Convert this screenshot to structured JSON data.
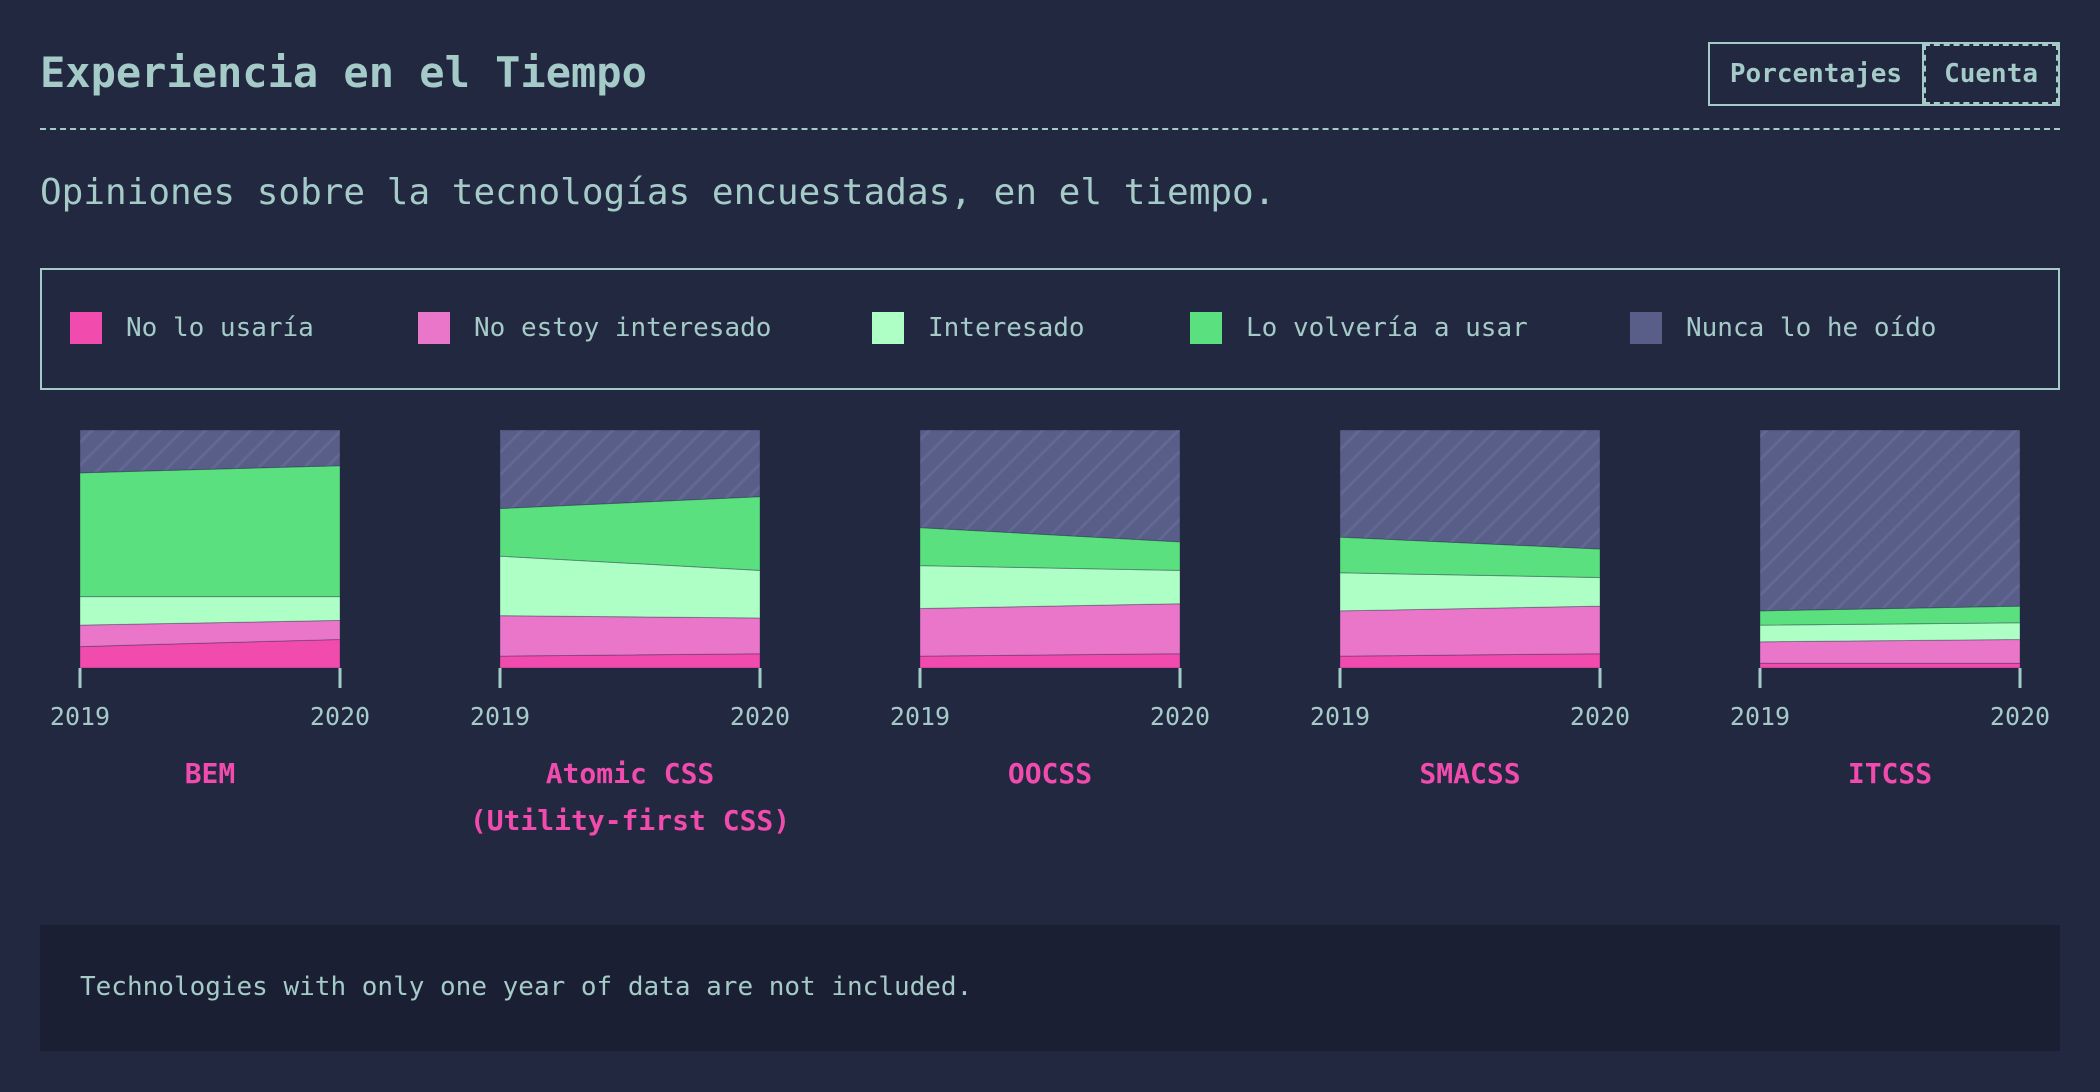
{
  "header": {
    "title": "Experiencia en el Tiempo",
    "toggle": {
      "percentages_label": "Porcentajes",
      "count_label": "Cuenta"
    }
  },
  "subtitle": "Opiniones sobre la tecnologías encuestadas, en el tiempo.",
  "colors": {
    "background": "#232841",
    "text": "#a4cbc7",
    "accent": "#f14bad",
    "note_background": "#1b1f33"
  },
  "legend": [
    {
      "label": "No lo usaría",
      "color": "#f14bad"
    },
    {
      "label": "No estoy interesado",
      "color": "#ea76c9"
    },
    {
      "label": "Interesado",
      "color": "#adffc5"
    },
    {
      "label": "Lo volvería a usar",
      "color": "#5ae07f"
    },
    {
      "label": "Nunca lo he oído",
      "color": "#585e87"
    }
  ],
  "chart_data": {
    "type": "area",
    "stacked": true,
    "percent": true,
    "x": [
      "2019",
      "2020"
    ],
    "ylim": [
      0,
      100
    ],
    "series_order": [
      "No lo usaría",
      "No estoy interesado",
      "Interesado",
      "Lo volvería a usar",
      "Nunca lo he oído"
    ],
    "charts": [
      {
        "name": "BEM",
        "series": [
          {
            "name": "No lo usaría",
            "values": [
              9,
              12
            ]
          },
          {
            "name": "No estoy interesado",
            "values": [
              9,
              8
            ]
          },
          {
            "name": "Interesado",
            "values": [
              12,
              10
            ]
          },
          {
            "name": "Lo volvería a usar",
            "values": [
              52,
              55
            ]
          },
          {
            "name": "Nunca lo he oído",
            "values": [
              18,
              15
            ]
          }
        ]
      },
      {
        "name": "Atomic CSS (Utility-first CSS)",
        "series": [
          {
            "name": "No lo usaría",
            "values": [
              5,
              6
            ]
          },
          {
            "name": "No estoy interesado",
            "values": [
              17,
              15
            ]
          },
          {
            "name": "Interesado",
            "values": [
              25,
              20
            ]
          },
          {
            "name": "Lo volvería a usar",
            "values": [
              20,
              31
            ]
          },
          {
            "name": "Nunca lo he oído",
            "values": [
              33,
              28
            ]
          }
        ]
      },
      {
        "name": "OOCSS",
        "series": [
          {
            "name": "No lo usaría",
            "values": [
              5,
              6
            ]
          },
          {
            "name": "No estoy interesado",
            "values": [
              20,
              21
            ]
          },
          {
            "name": "Interesado",
            "values": [
              18,
              14
            ]
          },
          {
            "name": "Lo volvería a usar",
            "values": [
              16,
              12
            ]
          },
          {
            "name": "Nunca lo he oído",
            "values": [
              41,
              47
            ]
          }
        ]
      },
      {
        "name": "SMACSS",
        "series": [
          {
            "name": "No lo usaría",
            "values": [
              5,
              6
            ]
          },
          {
            "name": "No estoy interesado",
            "values": [
              19,
              20
            ]
          },
          {
            "name": "Interesado",
            "values": [
              16,
              12
            ]
          },
          {
            "name": "Lo volvería a usar",
            "values": [
              15,
              12
            ]
          },
          {
            "name": "Nunca lo he oído",
            "values": [
              45,
              50
            ]
          }
        ]
      },
      {
        "name": "ITCSS",
        "series": [
          {
            "name": "No lo usaría",
            "values": [
              2,
              2
            ]
          },
          {
            "name": "No estoy interesado",
            "values": [
              9,
              10
            ]
          },
          {
            "name": "Interesado",
            "values": [
              7,
              7
            ]
          },
          {
            "name": "Lo volvería a usar",
            "values": [
              6,
              7
            ]
          },
          {
            "name": "Nunca lo he oído",
            "values": [
              76,
              74
            ]
          }
        ]
      }
    ]
  },
  "chart_labels": [
    {
      "lines": [
        "BEM"
      ]
    },
    {
      "lines": [
        "Atomic CSS",
        "(Utility-first CSS)"
      ]
    },
    {
      "lines": [
        "OOCSS"
      ]
    },
    {
      "lines": [
        "SMACSS"
      ]
    },
    {
      "lines": [
        "ITCSS"
      ]
    }
  ],
  "note": "Technologies with only one year of data are not included."
}
